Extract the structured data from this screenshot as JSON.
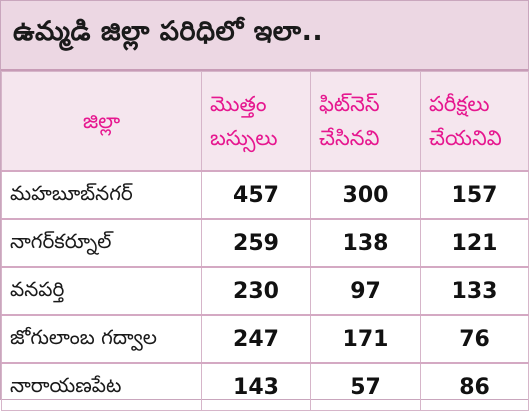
{
  "title": "ఉమ్మడి జిల్లా పరిధిలో ఇలా..",
  "table": {
    "headers": {
      "district": "జిల్లా",
      "total": [
        "మొత్తం",
        "బస్సులు"
      ],
      "fitness_done": [
        "ఫిట్‌నెస్",
        "చేసినవి"
      ],
      "tests_not_done": [
        "పరీక్షలు",
        "చేయనివి"
      ]
    },
    "rows": [
      {
        "district": "మహబూబ్‌నగర్",
        "total": "457",
        "fitness_done": "300",
        "tests_not_done": "157"
      },
      {
        "district": "నాగర్‌కర్నూల్",
        "total": "259",
        "fitness_done": "138",
        "tests_not_done": "121"
      },
      {
        "district": "వనపర్తి",
        "total": "230",
        "fitness_done": "97",
        "tests_not_done": "133"
      },
      {
        "district": "జోగులాంబ గద్వాల",
        "total": "247",
        "fitness_done": "171",
        "tests_not_done": "76"
      },
      {
        "district": "నారాయణపేట",
        "total": "143",
        "fitness_done": "57",
        "tests_not_done": "86"
      }
    ]
  },
  "colors": {
    "header_text": "#e6178f",
    "title_background": "#ecd7e3",
    "header_background": "#f5e6ee"
  }
}
